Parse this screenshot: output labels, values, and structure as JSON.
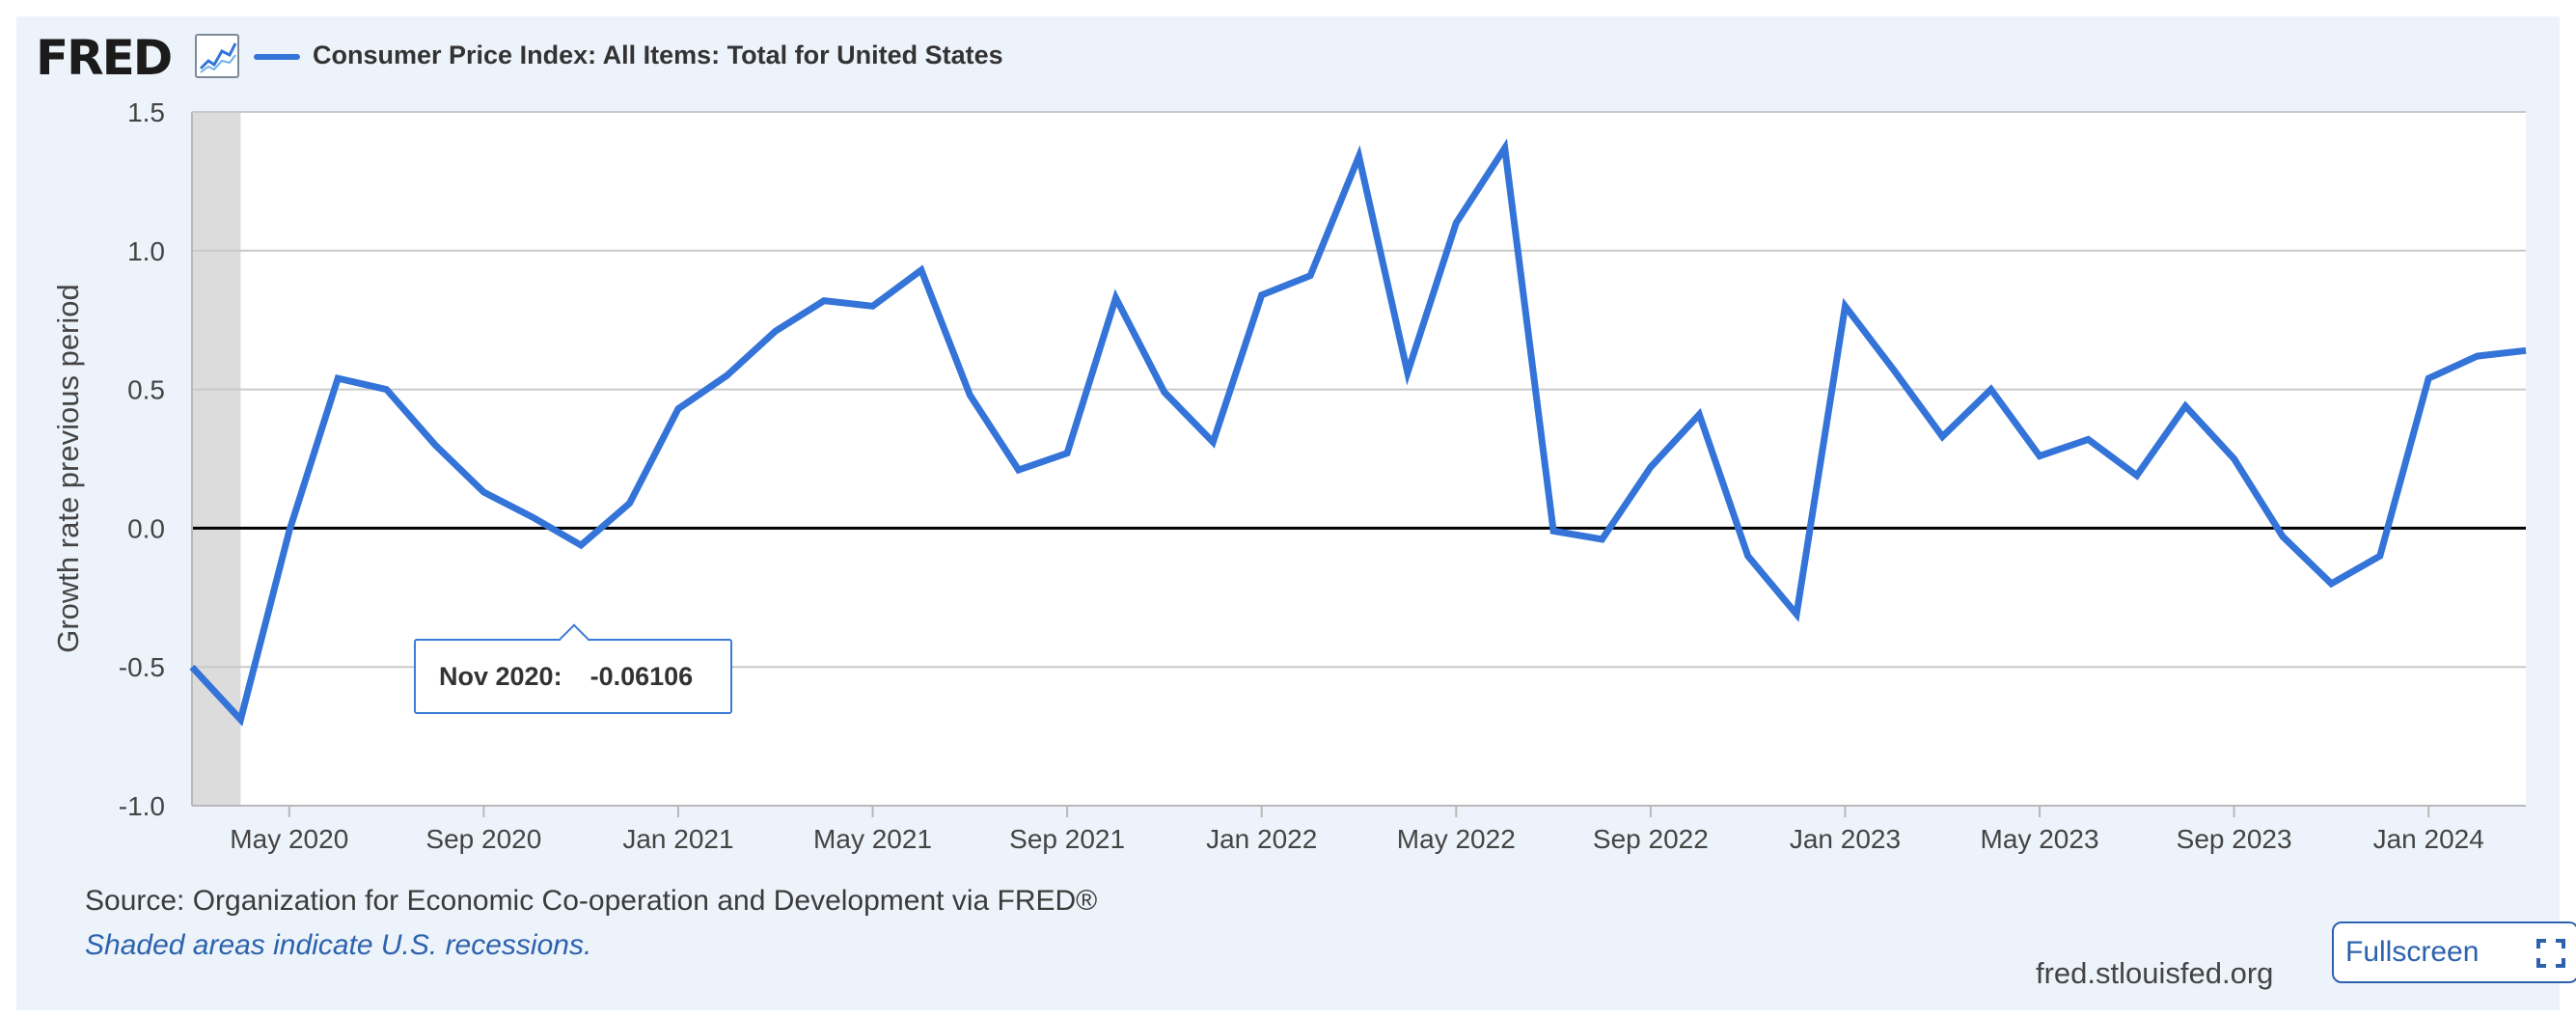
{
  "brand": {
    "logo_text": "FRED",
    "logo_icon": "line-chart-icon"
  },
  "legend": {
    "label": "Consumer Price Index: All Items: Total for United States",
    "color": "#3474d8"
  },
  "tooltip": {
    "label": "Nov 2020:",
    "value": "-0.06106"
  },
  "footer": {
    "source": "Source: Organization for Economic Co-operation and Development via FRED®",
    "recession_note": "Shaded areas indicate U.S. recessions.",
    "site": "fred.stlouisfed.org",
    "fullscreen_label": "Fullscreen",
    "fullscreen_icon": "expand-icon"
  },
  "colors": {
    "line": "#3474d8",
    "accent": "#2c62ad",
    "panel": "#edf3fa",
    "recession_shade": "#dcdcdc"
  },
  "chart_data": {
    "type": "line",
    "ylabel": "Growth rate previous period",
    "ylim": [
      -1.0,
      1.5
    ],
    "yticks": [
      1.5,
      1.0,
      0.5,
      0.0,
      -0.5,
      -1.0
    ],
    "ytick_labels": [
      "1.5",
      "1.0",
      "0.5",
      "0.0",
      "-0.5",
      "-1.0"
    ],
    "xlim": [
      "2020-03",
      "2024-03"
    ],
    "xticks": [
      "2020-05",
      "2020-09",
      "2021-01",
      "2021-05",
      "2021-09",
      "2022-01",
      "2022-05",
      "2022-09",
      "2023-01",
      "2023-05",
      "2023-09",
      "2024-01"
    ],
    "xtick_labels": [
      "May 2020",
      "Sep 2020",
      "Jan 2021",
      "May 2021",
      "Sep 2021",
      "Jan 2022",
      "May 2022",
      "Sep 2022",
      "Jan 2023",
      "May 2023",
      "Sep 2023",
      "Jan 2024"
    ],
    "grid": true,
    "zero_line": true,
    "recession": {
      "start": "2020-03",
      "end": "2020-04"
    },
    "highlight": {
      "x": "2020-11",
      "y": -0.06106
    },
    "series": [
      {
        "name": "Consumer Price Index: All Items: Total for United States",
        "x": [
          "2020-03",
          "2020-04",
          "2020-05",
          "2020-06",
          "2020-07",
          "2020-08",
          "2020-09",
          "2020-10",
          "2020-11",
          "2020-12",
          "2021-01",
          "2021-02",
          "2021-03",
          "2021-04",
          "2021-05",
          "2021-06",
          "2021-07",
          "2021-08",
          "2021-09",
          "2021-10",
          "2021-11",
          "2021-12",
          "2022-01",
          "2022-02",
          "2022-03",
          "2022-04",
          "2022-05",
          "2022-06",
          "2022-07",
          "2022-08",
          "2022-09",
          "2022-10",
          "2022-11",
          "2022-12",
          "2023-01",
          "2023-02",
          "2023-03",
          "2023-04",
          "2023-05",
          "2023-06",
          "2023-07",
          "2023-08",
          "2023-09",
          "2023-10",
          "2023-11",
          "2023-12",
          "2024-01",
          "2024-02",
          "2024-03"
        ],
        "values": [
          -0.5,
          -0.69,
          -0.01,
          0.54,
          0.5,
          0.3,
          0.13,
          0.04,
          -0.06106,
          0.09,
          0.43,
          0.55,
          0.71,
          0.82,
          0.8,
          0.93,
          0.48,
          0.21,
          0.27,
          0.83,
          0.49,
          0.31,
          0.84,
          0.91,
          1.34,
          0.56,
          1.1,
          1.37,
          -0.01,
          -0.04,
          0.22,
          0.41,
          -0.1,
          -0.31,
          0.8,
          0.57,
          0.33,
          0.5,
          0.26,
          0.32,
          0.19,
          0.44,
          0.25,
          -0.03,
          -0.2,
          -0.1,
          0.54,
          0.62,
          0.64
        ]
      }
    ]
  }
}
